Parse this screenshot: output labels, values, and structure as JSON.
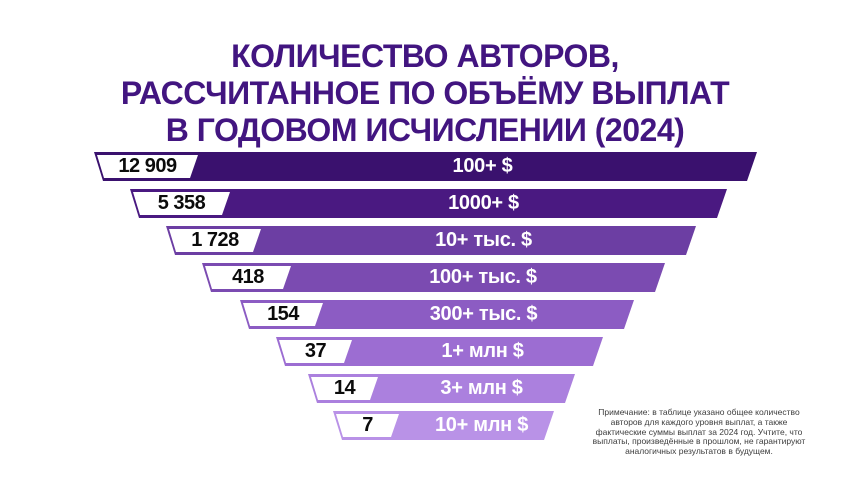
{
  "title": {
    "lines": [
      "КОЛИЧЕСТВО АВТОРОВ,",
      "РАССЧИТАННОЕ ПО ОБЪЁМУ ВЫПЛАТ",
      "В ГОДОВОМ ИСЧИСЛЕНИИ (2024)"
    ],
    "color": "#421580"
  },
  "chart_data": {
    "type": "funnel",
    "title": "КОЛИЧЕСТВО АВТОРОВ, РАССЧИТАННОЕ ПО ОБЪЁМУ ВЫПЛАТ В ГОДОВОМ ИСЧИСЛЕНИИ (2024)",
    "direction": "narrowing-down",
    "background": "#ffffff",
    "rows": [
      {
        "count": "12 909",
        "count_value": 12909,
        "label": "100+ $",
        "color": "#3A116E"
      },
      {
        "count": "5 358",
        "count_value": 5358,
        "label": "1000+ $",
        "color": "#4A1981"
      },
      {
        "count": "1 728",
        "count_value": 1728,
        "label": "10+ тыс. $",
        "color": "#6C3EA3"
      },
      {
        "count": "418",
        "count_value": 418,
        "label": "100+ тыс. $",
        "color": "#7B4BB1"
      },
      {
        "count": "154",
        "count_value": 154,
        "label": "300+ тыс. $",
        "color": "#8C5CC3"
      },
      {
        "count": "37",
        "count_value": 37,
        "label": "1+ млн $",
        "color": "#9C6DD2"
      },
      {
        "count": "14",
        "count_value": 14,
        "label": "3+ млн $",
        "color": "#AB80DE"
      },
      {
        "count": "7",
        "count_value": 7,
        "label": "10+ млн $",
        "color": "#B992E7"
      }
    ]
  },
  "note": {
    "lines": [
      "Примечание: в таблице указано общее количество",
      "авторов для каждого уровня выплат, а также",
      "фактические суммы выплат за 2024 год. Учтите, что",
      "выплаты, произведённые в прошлом, не гарантируют",
      "аналогичных результатов в будущем."
    ]
  }
}
